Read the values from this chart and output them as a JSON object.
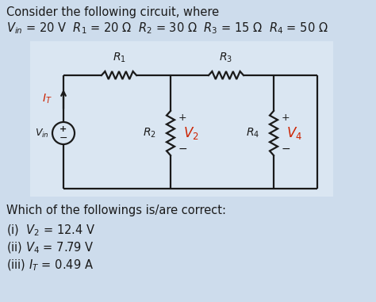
{
  "bg_color": "#cddcec",
  "circuit_bg": "#dae6f2",
  "title_line1": "Consider the following circuit, where",
  "line2": "$V_{in}$ = 20 V  $R_1$ = 20 Ω  $R_2$ = 30 Ω  $R_3$ = 15 Ω  $R_4$ = 50 Ω",
  "question": "Which of the followings is/are correct:",
  "ans1": "(i)  $V_2$ = 12.4 V",
  "ans2": "(ii) $V_4$ = 7.79 V",
  "ans3": "(iii) $I_T$ = 0.49 A",
  "text_color": "#1a1a1a",
  "red_color": "#cc2200",
  "wire_color": "#1a1a1a",
  "font_size": 10.5
}
